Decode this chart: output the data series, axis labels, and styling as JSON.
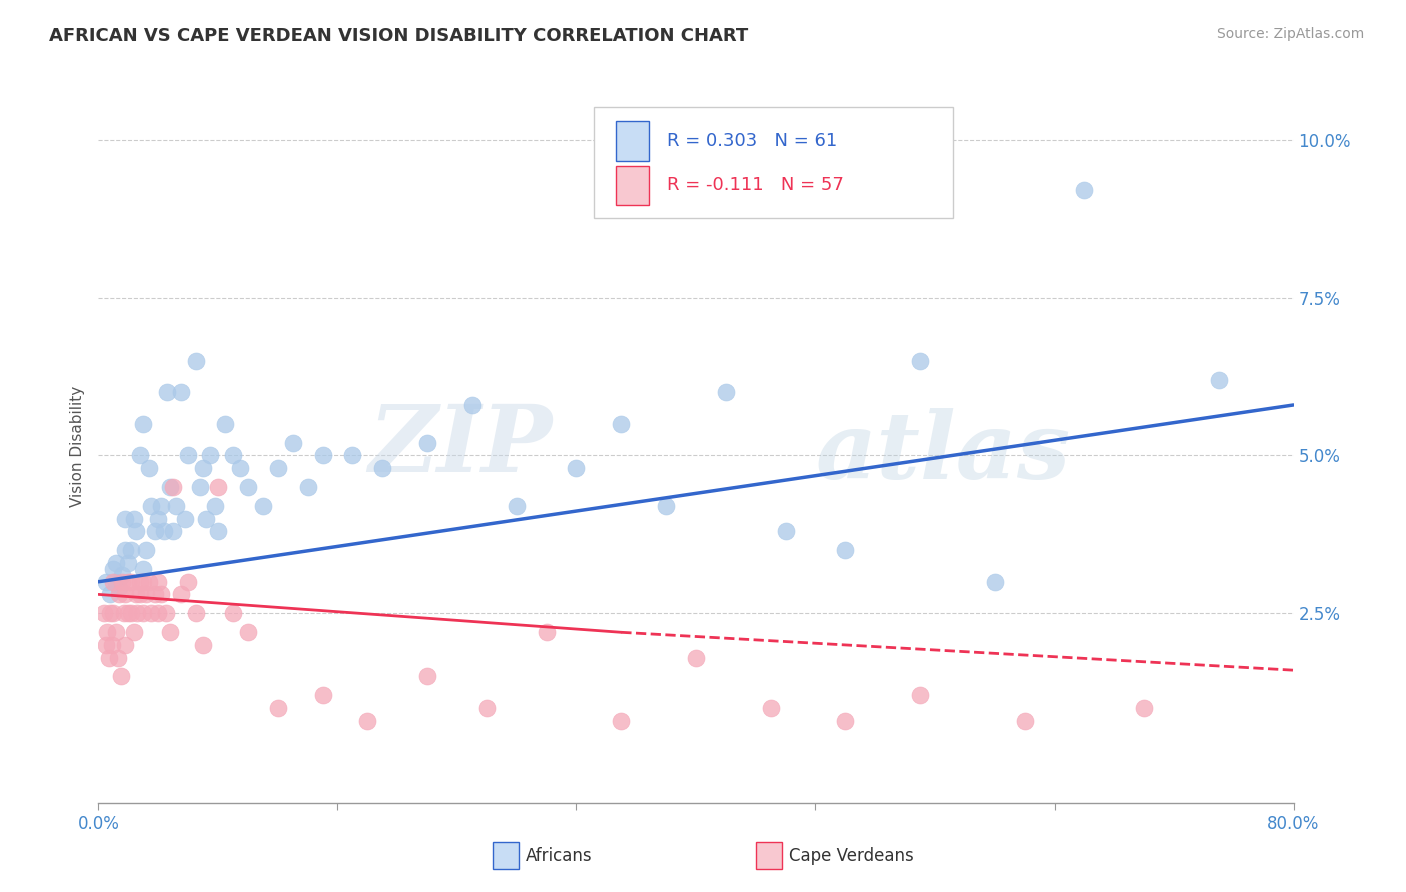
{
  "title": "AFRICAN VS CAPE VERDEAN VISION DISABILITY CORRELATION CHART",
  "source": "Source: ZipAtlas.com",
  "ylabel": "Vision Disability",
  "xlim": [
    0.0,
    0.8
  ],
  "ylim": [
    -0.005,
    0.108
  ],
  "xticks": [
    0.0,
    0.16,
    0.32,
    0.48,
    0.64,
    0.8
  ],
  "xticklabels": [
    "0.0%",
    "",
    "",
    "",
    "",
    "80.0%"
  ],
  "yticks": [
    0.025,
    0.05,
    0.075,
    0.1
  ],
  "yticklabels": [
    "2.5%",
    "5.0%",
    "7.5%",
    "10.0%"
  ],
  "grid_color": "#cccccc",
  "background_color": "#ffffff",
  "african_color": "#aac8e8",
  "cape_verdean_color": "#f4a8b8",
  "african_line_color": "#3366cc",
  "cape_verdean_line_color": "#ee3355",
  "R_african": 0.303,
  "N_african": 61,
  "R_cape_verdean": -0.111,
  "N_cape_verdean": 57,
  "african_scatter_x": [
    0.005,
    0.008,
    0.01,
    0.012,
    0.012,
    0.014,
    0.016,
    0.018,
    0.018,
    0.02,
    0.022,
    0.024,
    0.025,
    0.028,
    0.03,
    0.03,
    0.032,
    0.034,
    0.035,
    0.038,
    0.04,
    0.042,
    0.044,
    0.046,
    0.048,
    0.05,
    0.052,
    0.055,
    0.058,
    0.06,
    0.065,
    0.068,
    0.07,
    0.072,
    0.075,
    0.078,
    0.08,
    0.085,
    0.09,
    0.095,
    0.1,
    0.11,
    0.12,
    0.13,
    0.14,
    0.15,
    0.17,
    0.19,
    0.22,
    0.25,
    0.28,
    0.32,
    0.35,
    0.38,
    0.42,
    0.46,
    0.5,
    0.55,
    0.6,
    0.66,
    0.75
  ],
  "african_scatter_y": [
    0.03,
    0.028,
    0.032,
    0.03,
    0.033,
    0.029,
    0.031,
    0.035,
    0.04,
    0.033,
    0.035,
    0.04,
    0.038,
    0.05,
    0.032,
    0.055,
    0.035,
    0.048,
    0.042,
    0.038,
    0.04,
    0.042,
    0.038,
    0.06,
    0.045,
    0.038,
    0.042,
    0.06,
    0.04,
    0.05,
    0.065,
    0.045,
    0.048,
    0.04,
    0.05,
    0.042,
    0.038,
    0.055,
    0.05,
    0.048,
    0.045,
    0.042,
    0.048,
    0.052,
    0.045,
    0.05,
    0.05,
    0.048,
    0.052,
    0.058,
    0.042,
    0.048,
    0.055,
    0.042,
    0.06,
    0.038,
    0.035,
    0.065,
    0.03,
    0.092,
    0.062
  ],
  "cape_verdean_scatter_x": [
    0.004,
    0.005,
    0.006,
    0.007,
    0.008,
    0.009,
    0.01,
    0.01,
    0.012,
    0.013,
    0.014,
    0.015,
    0.016,
    0.017,
    0.018,
    0.018,
    0.02,
    0.02,
    0.022,
    0.022,
    0.024,
    0.025,
    0.026,
    0.028,
    0.028,
    0.03,
    0.03,
    0.032,
    0.034,
    0.035,
    0.038,
    0.04,
    0.04,
    0.042,
    0.045,
    0.048,
    0.05,
    0.055,
    0.06,
    0.065,
    0.07,
    0.08,
    0.09,
    0.1,
    0.12,
    0.15,
    0.18,
    0.22,
    0.26,
    0.3,
    0.35,
    0.4,
    0.45,
    0.5,
    0.55,
    0.62,
    0.7
  ],
  "cape_verdean_scatter_y": [
    0.025,
    0.02,
    0.022,
    0.018,
    0.025,
    0.02,
    0.03,
    0.025,
    0.022,
    0.018,
    0.028,
    0.015,
    0.03,
    0.025,
    0.02,
    0.028,
    0.03,
    0.025,
    0.025,
    0.03,
    0.022,
    0.028,
    0.025,
    0.03,
    0.028,
    0.025,
    0.03,
    0.028,
    0.03,
    0.025,
    0.028,
    0.025,
    0.03,
    0.028,
    0.025,
    0.022,
    0.045,
    0.028,
    0.03,
    0.025,
    0.02,
    0.045,
    0.025,
    0.022,
    0.01,
    0.012,
    0.008,
    0.015,
    0.01,
    0.022,
    0.008,
    0.018,
    0.01,
    0.008,
    0.012,
    0.008,
    0.01
  ],
  "watermark_text": "ZIP",
  "watermark_text2": "atlas",
  "legend_box_color_african": "#c8ddf5",
  "legend_box_color_cape_verdean": "#f8c8d0",
  "african_line_start_x": 0.0,
  "african_line_start_y": 0.03,
  "african_line_end_x": 0.8,
  "african_line_end_y": 0.058,
  "cape_line_start_x": 0.0,
  "cape_line_start_y": 0.028,
  "cape_line_solid_end_x": 0.35,
  "cape_line_solid_end_y": 0.022,
  "cape_line_dash_start_x": 0.35,
  "cape_line_dash_start_y": 0.022,
  "cape_line_end_x": 0.8,
  "cape_line_end_y": 0.016
}
